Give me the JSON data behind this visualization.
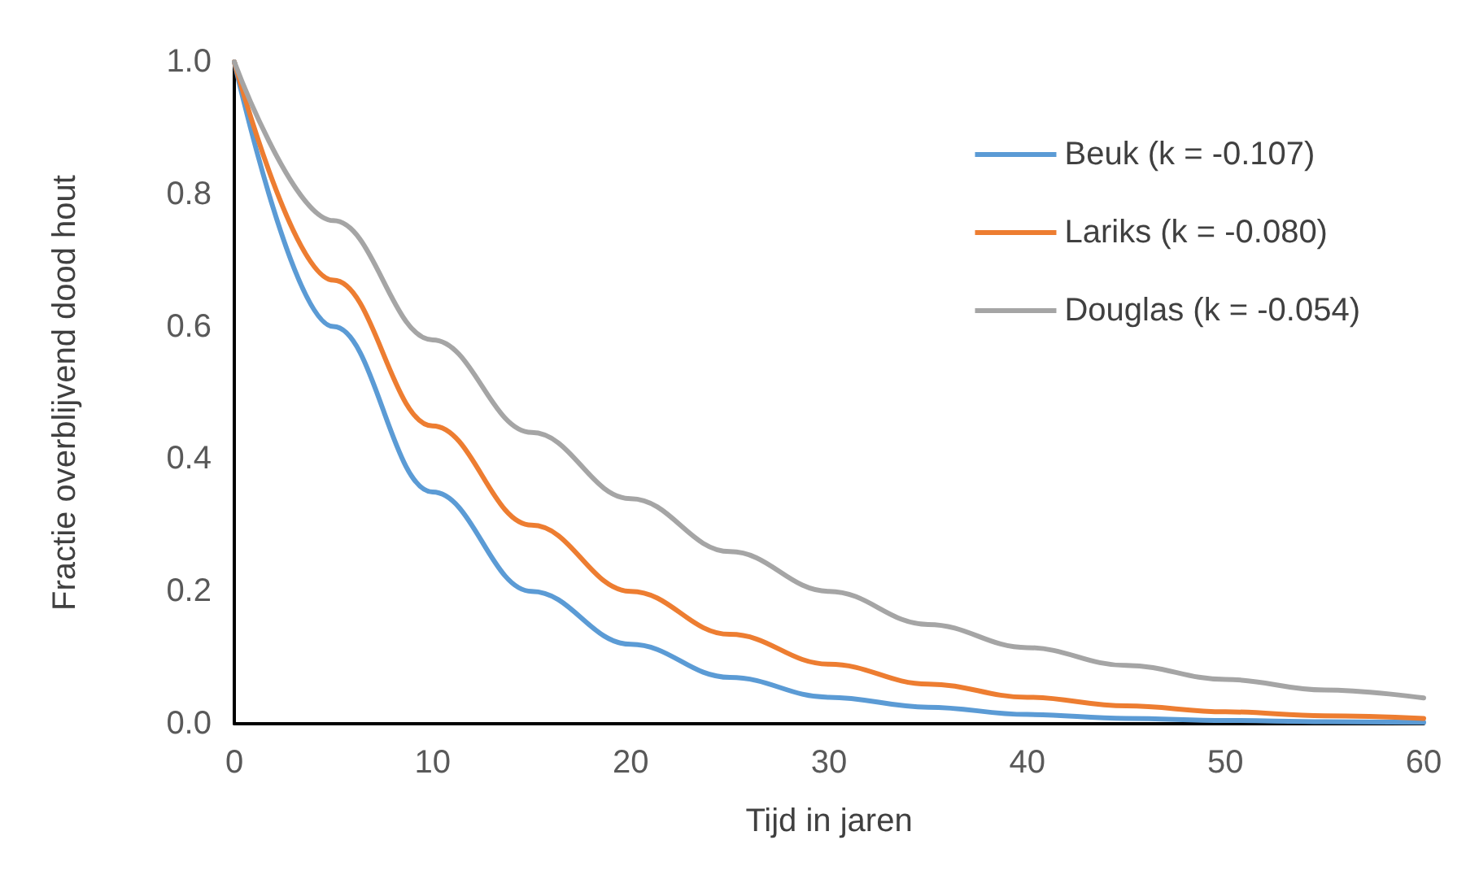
{
  "chart_data": {
    "type": "line",
    "xlabel": "Tijd in jaren",
    "ylabel": "Fractie overblijvend dood hout",
    "x": [
      0,
      5,
      10,
      15,
      20,
      25,
      30,
      35,
      40,
      45,
      50,
      55,
      60
    ],
    "series": [
      {
        "name": "Beuk (k = -0.107)",
        "color": "#5b9bd5",
        "values": [
          1.0,
          0.6,
          0.35,
          0.2,
          0.12,
          0.07,
          0.04,
          0.025,
          0.014,
          0.008,
          0.005,
          0.003,
          0.002
        ]
      },
      {
        "name": "Lariks (k = -0.080)",
        "color": "#ed7d31",
        "values": [
          1.0,
          0.67,
          0.45,
          0.3,
          0.2,
          0.135,
          0.09,
          0.06,
          0.04,
          0.027,
          0.018,
          0.012,
          0.008
        ]
      },
      {
        "name": "Douglas (k = -0.054)",
        "color": "#a5a5a5",
        "values": [
          1.0,
          0.76,
          0.58,
          0.44,
          0.34,
          0.26,
          0.2,
          0.15,
          0.115,
          0.088,
          0.067,
          0.051,
          0.039
        ]
      }
    ],
    "xlim": [
      0,
      60
    ],
    "xticks": [
      0,
      10,
      20,
      30,
      40,
      50,
      60
    ],
    "ylim": [
      0,
      1
    ],
    "yticks": [
      {
        "value": 0,
        "label": "0.0"
      },
      {
        "value": 0.2,
        "label": "0.2"
      },
      {
        "value": 0.4,
        "label": "0.4"
      },
      {
        "value": 0.6,
        "label": "0.6"
      },
      {
        "value": 0.8,
        "label": "0.8"
      },
      {
        "value": 1,
        "label": "1.0"
      }
    ],
    "grid": false,
    "legend": "top right",
    "marker": "none",
    "line_style": "solid"
  }
}
